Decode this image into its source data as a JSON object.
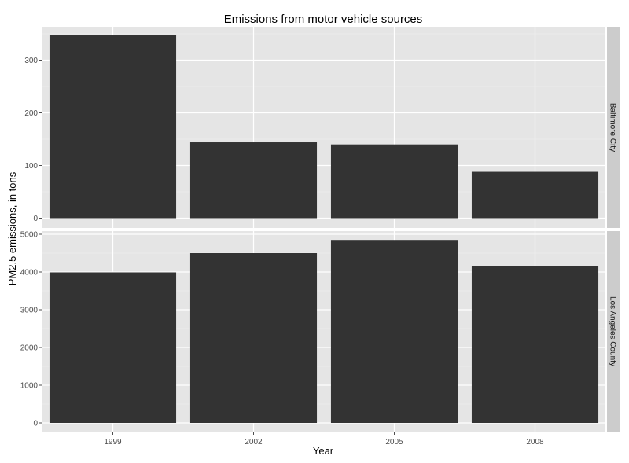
{
  "chart_data": {
    "type": "bar",
    "title": "Emissions from motor vehicle sources",
    "xlabel": "Year",
    "ylabel": "PM2.5 emissions, in tons",
    "categories": [
      "1999",
      "2002",
      "2005",
      "2008"
    ],
    "facets": [
      {
        "label": "Baltimore City",
        "values": [
          347,
          144,
          140,
          88
        ],
        "ylim": [
          0,
          350
        ],
        "yticks": [
          0,
          100,
          200,
          300
        ]
      },
      {
        "label": "Los Angeles County",
        "values": [
          3990,
          4500,
          4850,
          4150
        ],
        "ylim": [
          0,
          5000
        ],
        "yticks": [
          0,
          1000,
          2000,
          3000,
          4000,
          5000
        ]
      }
    ],
    "grid": true,
    "bar_color": "#333333",
    "panel_color": "#e5e5e5",
    "strip_color": "#cccccc"
  }
}
